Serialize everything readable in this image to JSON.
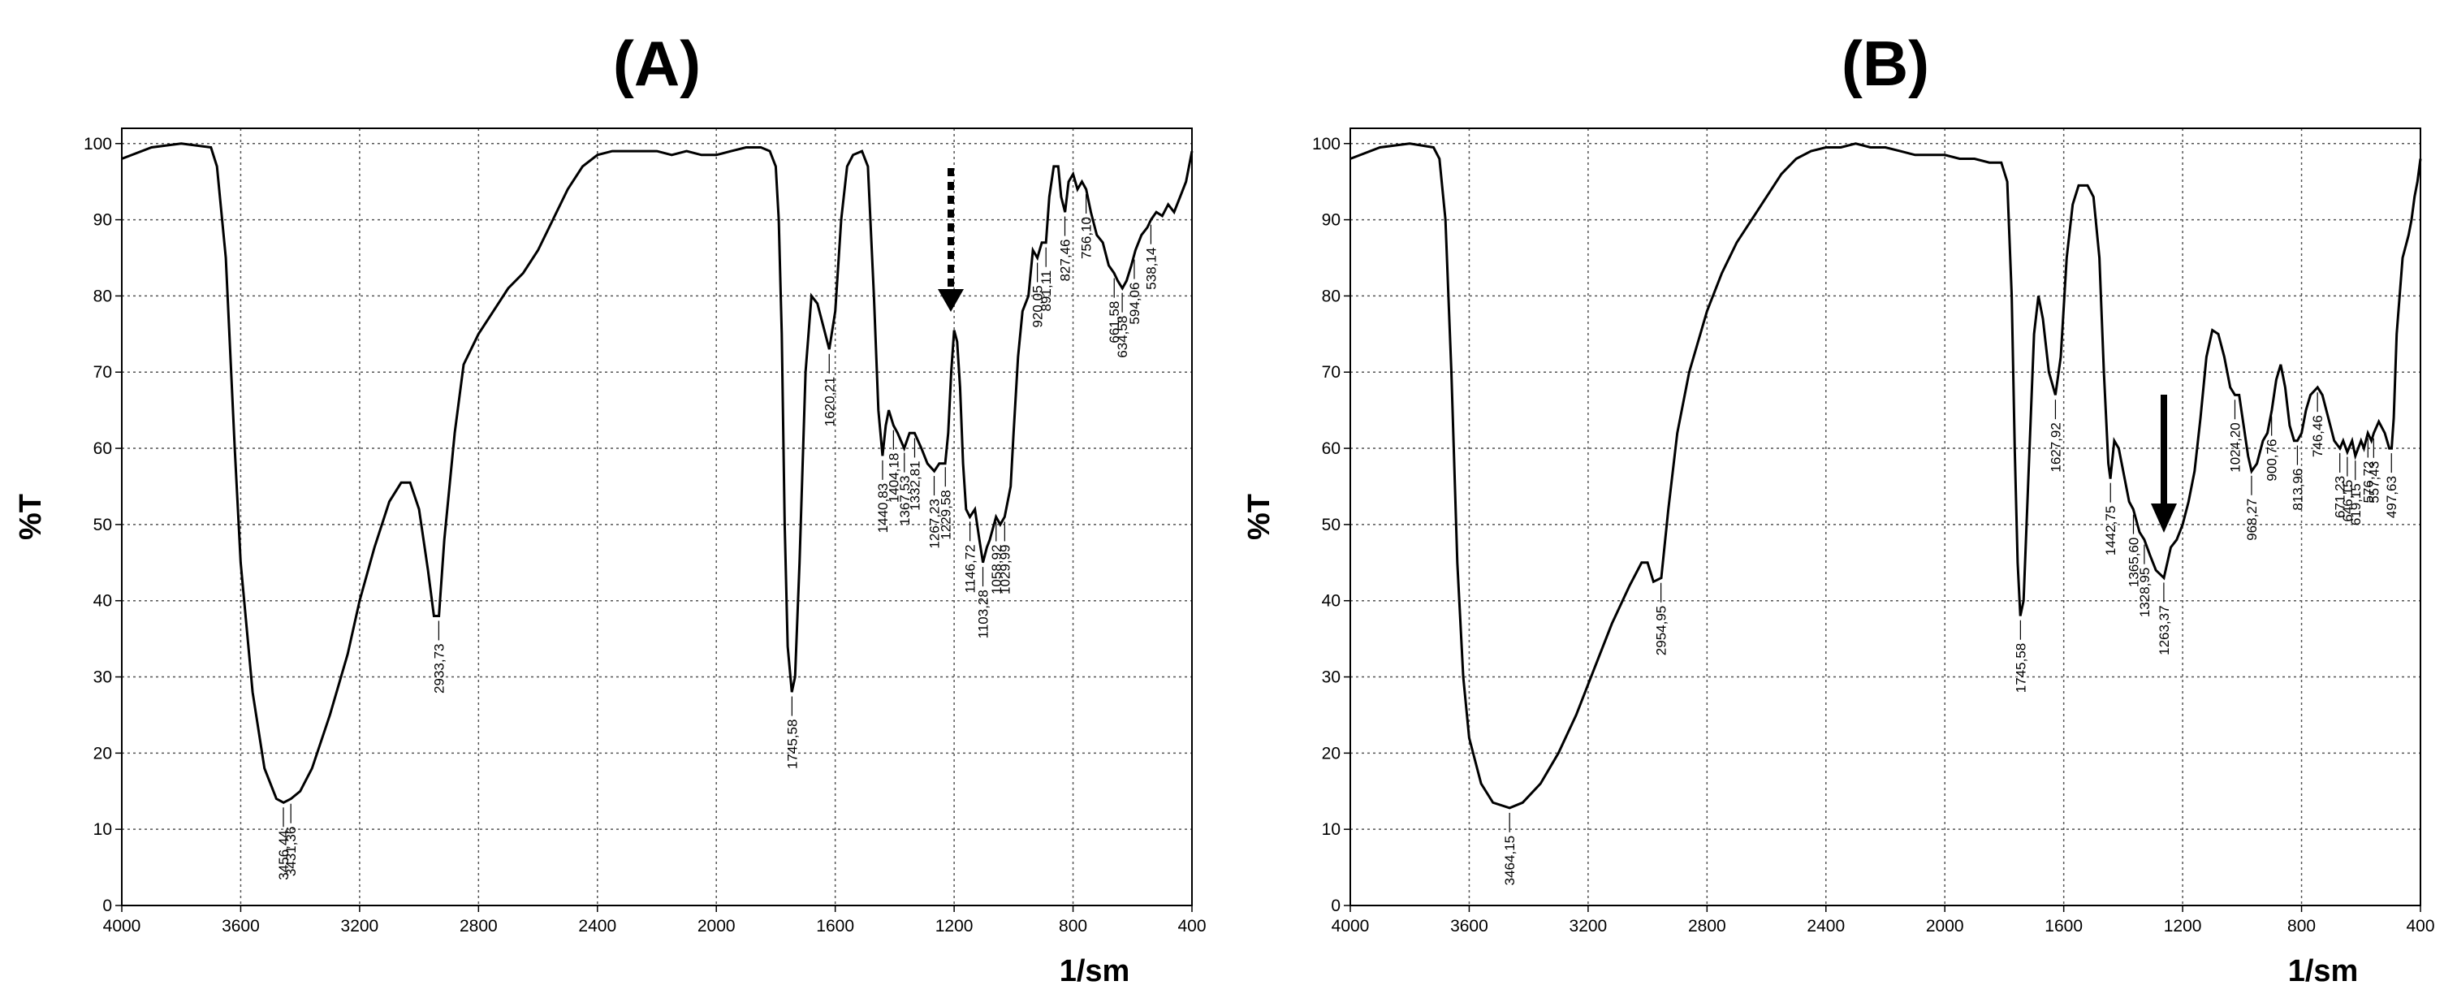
{
  "chart_data": [
    {
      "type": "line",
      "title": "(A)",
      "xlabel": "1/sm",
      "ylabel": "%T",
      "x": [
        4000,
        3900,
        3800,
        3700,
        3680,
        3650,
        3620,
        3600,
        3560,
        3520,
        3480,
        3456,
        3431,
        3400,
        3360,
        3300,
        3240,
        3200,
        3150,
        3100,
        3060,
        3030,
        3000,
        2970,
        2950,
        2933,
        2915,
        2880,
        2850,
        2800,
        2750,
        2700,
        2650,
        2600,
        2550,
        2500,
        2450,
        2400,
        2350,
        2300,
        2250,
        2200,
        2150,
        2100,
        2050,
        2000,
        1950,
        1900,
        1850,
        1820,
        1800,
        1790,
        1780,
        1770,
        1760,
        1746,
        1735,
        1720,
        1700,
        1680,
        1660,
        1640,
        1620,
        1600,
        1580,
        1560,
        1540,
        1510,
        1490,
        1470,
        1455,
        1441,
        1430,
        1420,
        1404,
        1390,
        1368,
        1350,
        1333,
        1310,
        1290,
        1267,
        1250,
        1230,
        1220,
        1210,
        1200,
        1190,
        1180,
        1170,
        1160,
        1147,
        1130,
        1115,
        1103,
        1090,
        1080,
        1059,
        1045,
        1030,
        1010,
        1000,
        985,
        970,
        950,
        935,
        920,
        905,
        891,
        880,
        865,
        850,
        840,
        827,
        815,
        800,
        785,
        770,
        756,
        740,
        720,
        700,
        680,
        662,
        650,
        634,
        620,
        604,
        590,
        570,
        550,
        538,
        520,
        500,
        480,
        460,
        440,
        420,
        400
      ],
      "series": [
        {
          "color": "#000000",
          "values": [
            98,
            99.5,
            100,
            99.5,
            97,
            85,
            60,
            45,
            28,
            18,
            14,
            13.5,
            14,
            15,
            18,
            25,
            33,
            40,
            47,
            53,
            55.5,
            55.5,
            52,
            44,
            38,
            38,
            48,
            62,
            71,
            75,
            78,
            81,
            83,
            86,
            90,
            94,
            97,
            98.5,
            99,
            99,
            99,
            99,
            98.5,
            99,
            98.5,
            98.5,
            99,
            99.5,
            99.5,
            99,
            97,
            90,
            75,
            50,
            34,
            28,
            30,
            45,
            70,
            80,
            79,
            76,
            73,
            78,
            90,
            97,
            98.5,
            99,
            97,
            80,
            65,
            59,
            63,
            65,
            63,
            62,
            60,
            62,
            62,
            60,
            58,
            57,
            58,
            58,
            62,
            70,
            75.5,
            74,
            68,
            58,
            52,
            51,
            52,
            48,
            45,
            47,
            48,
            51,
            50,
            51,
            55,
            62,
            72,
            78,
            80,
            86,
            85,
            87,
            87,
            93,
            97,
            97,
            93,
            91,
            95,
            96,
            94,
            95,
            94,
            91,
            88,
            87,
            84,
            83,
            82,
            81,
            82,
            84,
            86,
            88,
            89,
            90,
            91,
            90.5,
            92,
            91,
            93,
            95,
            99
          ]
        }
      ],
      "xlim": [
        4000,
        400
      ],
      "ylim": [
        0,
        102
      ],
      "xticks": [
        4000,
        3600,
        3200,
        2800,
        2400,
        2000,
        1600,
        1200,
        800,
        400
      ],
      "yticks": [
        0,
        10,
        20,
        30,
        40,
        50,
        60,
        70,
        80,
        90,
        100
      ],
      "grid": true,
      "peaks": [
        {
          "value": 3456.44,
          "label": "3456,44"
        },
        {
          "value": 3431.36,
          "label": "3431,36"
        },
        {
          "value": 2933.73,
          "label": "2933,73"
        },
        {
          "value": 1745.58,
          "label": "1745,58"
        },
        {
          "value": 1620.21,
          "label": "1620,21"
        },
        {
          "value": 1440.83,
          "label": "1440,83"
        },
        {
          "value": 1404.18,
          "label": "1404,18"
        },
        {
          "value": 1367.53,
          "label": "1367,53"
        },
        {
          "value": 1332.81,
          "label": "1332,81"
        },
        {
          "value": 1267.23,
          "label": "1267,23"
        },
        {
          "value": 1229.58,
          "label": "1229,58"
        },
        {
          "value": 1146.72,
          "label": "1146,72"
        },
        {
          "value": 1103.28,
          "label": "1103,28"
        },
        {
          "value": 1058.92,
          "label": "1058,92"
        },
        {
          "value": 1029.99,
          "label": "1029,99"
        },
        {
          "value": 920.05,
          "label": "920,05"
        },
        {
          "value": 891.11,
          "label": "891,11"
        },
        {
          "value": 827.46,
          "label": "827,46"
        },
        {
          "value": 756.1,
          "label": "756,10"
        },
        {
          "value": 661.58,
          "label": "661,58"
        },
        {
          "value": 634.58,
          "label": "634,58"
        },
        {
          "value": 594.06,
          "label": "594,06"
        },
        {
          "value": 538.14,
          "label": "538,14"
        }
      ]
    },
    {
      "type": "line",
      "title": "(B)",
      "xlabel": "1/sm",
      "ylabel": "%T",
      "x": [
        4000,
        3900,
        3800,
        3720,
        3700,
        3680,
        3660,
        3640,
        3620,
        3600,
        3560,
        3520,
        3464,
        3420,
        3360,
        3300,
        3240,
        3180,
        3120,
        3060,
        3020,
        3000,
        2980,
        2954,
        2930,
        2900,
        2860,
        2800,
        2750,
        2700,
        2650,
        2600,
        2550,
        2500,
        2450,
        2400,
        2350,
        2300,
        2250,
        2200,
        2150,
        2100,
        2050,
        2000,
        1950,
        1900,
        1850,
        1810,
        1790,
        1775,
        1765,
        1755,
        1746,
        1735,
        1720,
        1700,
        1685,
        1670,
        1650,
        1628,
        1610,
        1590,
        1570,
        1550,
        1520,
        1500,
        1480,
        1465,
        1450,
        1443,
        1430,
        1415,
        1400,
        1380,
        1366,
        1345,
        1329,
        1310,
        1290,
        1263,
        1240,
        1220,
        1200,
        1180,
        1160,
        1140,
        1120,
        1100,
        1080,
        1060,
        1040,
        1024,
        1010,
        995,
        980,
        968,
        950,
        930,
        915,
        900,
        885,
        870,
        855,
        840,
        825,
        814,
        800,
        785,
        770,
        746,
        730,
        710,
        690,
        671,
        660,
        646,
        630,
        619,
        600,
        590,
        577,
        565,
        557,
        540,
        520,
        505,
        497,
        490,
        480,
        460,
        440,
        430,
        420,
        410,
        400
      ],
      "series": [
        {
          "color": "#000000",
          "values": [
            98,
            99.5,
            100,
            99.5,
            98,
            90,
            70,
            45,
            30,
            22,
            16,
            13.5,
            12.8,
            13.5,
            16,
            20,
            25,
            31,
            37,
            42,
            45,
            45,
            42.5,
            43,
            52,
            62,
            70,
            78,
            83,
            87,
            90,
            93,
            96,
            98,
            99,
            99.5,
            99.5,
            100,
            99.5,
            99.5,
            99,
            98.5,
            98.5,
            98.5,
            98,
            98,
            97.5,
            97.5,
            95,
            80,
            60,
            45,
            38,
            40,
            55,
            75,
            80,
            77,
            70,
            67,
            72,
            85,
            92,
            94.5,
            94.5,
            93,
            85,
            70,
            58,
            56,
            61,
            60,
            57,
            53,
            52,
            49,
            48,
            46,
            44,
            43,
            47,
            48,
            50,
            53,
            57,
            64,
            72,
            75.5,
            75,
            72,
            68,
            67,
            67,
            63,
            59,
            57,
            58,
            61,
            62,
            65,
            69,
            71,
            68,
            63,
            61,
            61,
            62,
            65,
            67,
            68,
            67,
            64,
            61,
            60,
            61,
            59.5,
            61,
            59,
            61,
            60,
            62,
            61,
            62,
            63.5,
            62,
            60,
            60,
            64,
            75,
            85,
            88,
            90,
            93,
            95,
            98
          ]
        }
      ],
      "xlim": [
        4000,
        400
      ],
      "ylim": [
        0,
        102
      ],
      "xticks": [
        4000,
        3600,
        3200,
        2800,
        2400,
        2000,
        1600,
        1200,
        800,
        400
      ],
      "yticks": [
        0,
        10,
        20,
        30,
        40,
        50,
        60,
        70,
        80,
        90,
        100
      ],
      "grid": true,
      "peaks": [
        {
          "value": 3464.15,
          "label": "3464,15"
        },
        {
          "value": 2954.95,
          "label": "2954,95"
        },
        {
          "value": 1745.58,
          "label": "1745,58"
        },
        {
          "value": 1627.92,
          "label": "1627,92"
        },
        {
          "value": 1442.75,
          "label": "1442,75"
        },
        {
          "value": 1365.6,
          "label": "1365,60"
        },
        {
          "value": 1328.95,
          "label": "1328,95"
        },
        {
          "value": 1263.37,
          "label": "1263,37"
        },
        {
          "value": 1024.2,
          "label": "1024,20"
        },
        {
          "value": 968.27,
          "label": "968,27"
        },
        {
          "value": 900.76,
          "label": "900,76"
        },
        {
          "value": 813.96,
          "label": "813,96"
        },
        {
          "value": 746.46,
          "label": "746,46"
        },
        {
          "value": 671.23,
          "label": "671,23"
        },
        {
          "value": 646.15,
          "label": "646,15"
        },
        {
          "value": 619.15,
          "label": "619,15"
        },
        {
          "value": 576.72,
          "label": "576,72"
        },
        {
          "value": 557.43,
          "label": "557,43"
        },
        {
          "value": 497.63,
          "label": "497,63"
        }
      ]
    }
  ]
}
